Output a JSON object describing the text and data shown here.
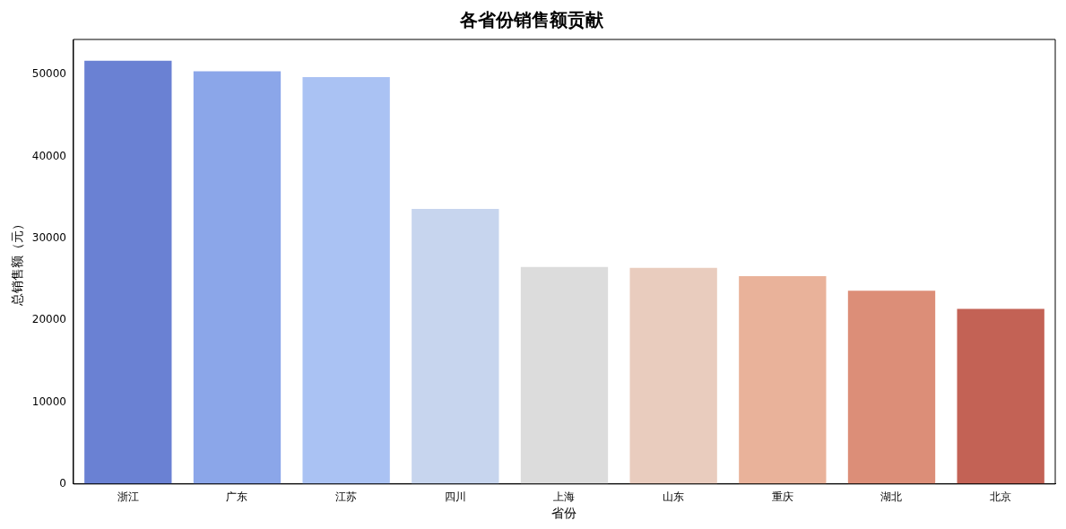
{
  "chart_data": {
    "type": "bar",
    "title": "各省份销售额贡献",
    "xlabel": "省份",
    "ylabel": "总销售额（元）",
    "categories": [
      "浙江",
      "广东",
      "江苏",
      "四川",
      "上海",
      "山东",
      "重庆",
      "湖北",
      "北京"
    ],
    "values": [
      51700,
      50400,
      49700,
      33600,
      26500,
      26400,
      25400,
      23600,
      21400
    ],
    "colors": [
      "#6a81d3",
      "#8ba6e9",
      "#aac2f3",
      "#c7d5ee",
      "#dcdcdc",
      "#e9ccbe",
      "#e9b29a",
      "#dc8e78",
      "#c36255"
    ],
    "ylim": [
      0,
      54300
    ],
    "yticks": [
      0,
      10000,
      20000,
      30000,
      40000,
      50000
    ],
    "grid": false,
    "legend": false
  }
}
